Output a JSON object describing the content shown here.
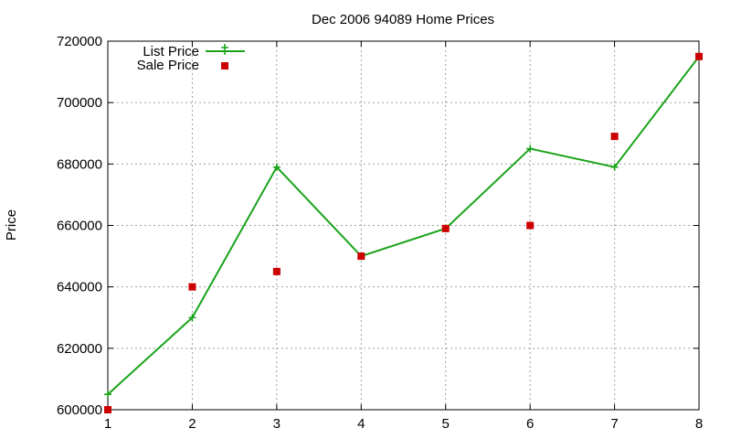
{
  "chart_data": {
    "type": "line",
    "title": "Dec 2006 94089 Home Prices",
    "xlabel": "",
    "ylabel": "Price",
    "x": [
      1,
      2,
      3,
      4,
      5,
      6,
      7,
      8
    ],
    "xlim": [
      1,
      8
    ],
    "ylim": [
      600000,
      720000
    ],
    "x_ticks": [
      1,
      2,
      3,
      4,
      5,
      6,
      7,
      8
    ],
    "y_ticks": [
      600000,
      620000,
      640000,
      660000,
      680000,
      700000,
      720000
    ],
    "grid": true,
    "legend_position": "top-left",
    "series": [
      {
        "name": "List Price",
        "type": "line",
        "marker": "plus",
        "color": "#1aa31a",
        "values": [
          605000,
          630000,
          679000,
          650000,
          659000,
          685000,
          679000,
          715000
        ]
      },
      {
        "name": "Sale Price",
        "type": "scatter",
        "marker": "square",
        "color": "#cc0000",
        "values": [
          600000,
          640000,
          645000,
          650000,
          659000,
          660000,
          689000,
          715000
        ]
      }
    ]
  }
}
